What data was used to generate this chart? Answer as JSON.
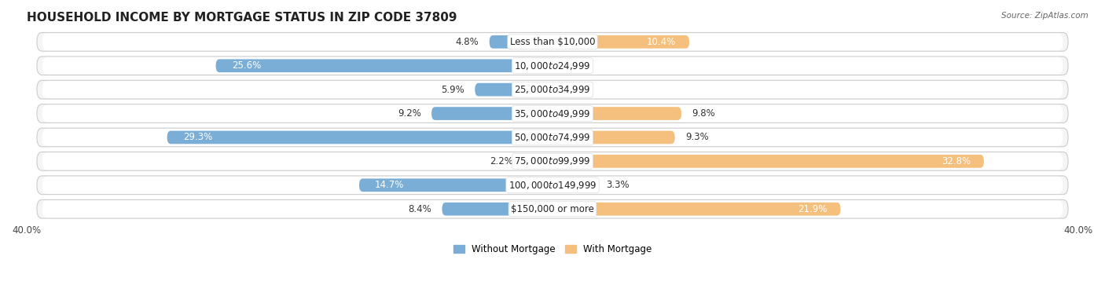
{
  "title": "HOUSEHOLD INCOME BY MORTGAGE STATUS IN ZIP CODE 37809",
  "source": "Source: ZipAtlas.com",
  "categories": [
    "Less than $10,000",
    "$10,000 to $24,999",
    "$25,000 to $34,999",
    "$35,000 to $49,999",
    "$50,000 to $74,999",
    "$75,000 to $99,999",
    "$100,000 to $149,999",
    "$150,000 or more"
  ],
  "without_mortgage": [
    4.8,
    25.6,
    5.9,
    9.2,
    29.3,
    2.2,
    14.7,
    8.4
  ],
  "with_mortgage": [
    10.4,
    0.0,
    0.0,
    9.8,
    9.3,
    32.8,
    3.3,
    21.9
  ],
  "blue_color": "#7aaed6",
  "orange_color": "#f5bf7e",
  "row_bg_color": "#f0f0f0",
  "row_bg_inner": "#fafafa",
  "axis_limit": 40.0,
  "title_fontsize": 11,
  "label_fontsize": 8.5,
  "cat_fontsize": 8.5,
  "bar_height": 0.55,
  "legend_labels": [
    "Without Mortgage",
    "With Mortgage"
  ],
  "x_tick_label": "40.0%"
}
